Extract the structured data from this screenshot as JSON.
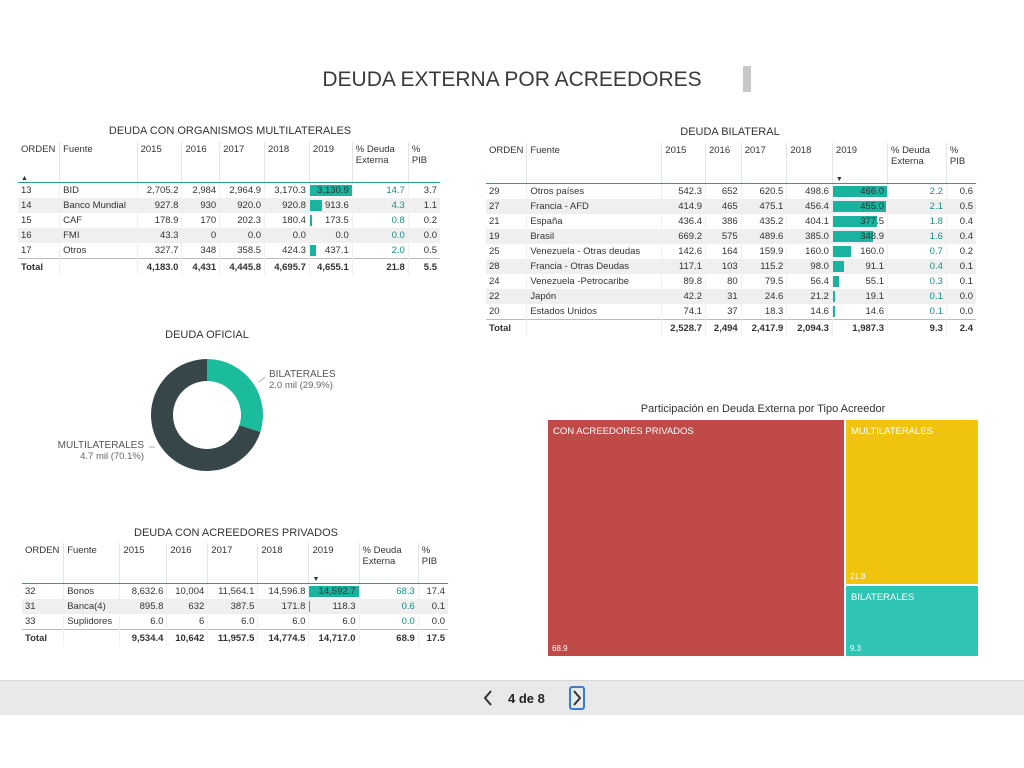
{
  "page": {
    "title": "DEUDA EXTERNA POR ACREEDORES",
    "pagination": {
      "text": "4 de 8",
      "current": 4,
      "total": 8
    }
  },
  "multilaterales": {
    "title": "DEUDA CON ORGANISMOS MULTILATERALES",
    "headers": [
      "ORDEN",
      "Fuente",
      "2015",
      "2016",
      "2017",
      "2018",
      "2019",
      "% Deuda Externa",
      "% PIB"
    ],
    "rows": [
      {
        "orden": "13",
        "fuente": "BID",
        "y2015": "2,705.2",
        "y2016": "2,984",
        "y2017": "2,964.9",
        "y2018": "3,170.3",
        "y2019": "3,130.9",
        "deuda": "14.7",
        "pib": "3.7",
        "bar": 1.0
      },
      {
        "orden": "14",
        "fuente": "Banco Mundial",
        "y2015": "927.8",
        "y2016": "930",
        "y2017": "920.0",
        "y2018": "920.8",
        "y2019": "913.6",
        "deuda": "4.3",
        "pib": "1.1",
        "bar": 0.29
      },
      {
        "orden": "15",
        "fuente": "CAF",
        "y2015": "178.9",
        "y2016": "170",
        "y2017": "202.3",
        "y2018": "180.4",
        "y2019": "173.5",
        "deuda": "0.8",
        "pib": "0.2",
        "bar": 0.06
      },
      {
        "orden": "16",
        "fuente": "FMI",
        "y2015": "43.3",
        "y2016": "0",
        "y2017": "0.0",
        "y2018": "0.0",
        "y2019": "0.0",
        "deuda": "0.0",
        "pib": "0.0",
        "bar": 0.0
      },
      {
        "orden": "17",
        "fuente": "Otros",
        "y2015": "327.7",
        "y2016": "348",
        "y2017": "358.5",
        "y2018": "424.3",
        "y2019": "437.1",
        "deuda": "2.0",
        "pib": "0.5",
        "bar": 0.14
      }
    ],
    "total": {
      "label": "Total",
      "y2015": "4,183.0",
      "y2016": "4,431",
      "y2017": "4,445.8",
      "y2018": "4,695.7",
      "y2019": "4,655.1",
      "deuda": "21.8",
      "pib": "5.5"
    }
  },
  "bilateral": {
    "title": "DEUDA BILATERAL",
    "headers": [
      "ORDEN",
      "Fuente",
      "2015",
      "2016",
      "2017",
      "2018",
      "2019",
      "% Deuda Externa",
      "% PIB"
    ],
    "rows": [
      {
        "orden": "29",
        "fuente": "Otros países",
        "y2015": "542.3",
        "y2016": "652",
        "y2017": "620.5",
        "y2018": "498.6",
        "y2019": "466.0",
        "deuda": "2.2",
        "pib": "0.6",
        "bar": 1.0
      },
      {
        "orden": "27",
        "fuente": "Francia - AFD",
        "y2015": "414.9",
        "y2016": "465",
        "y2017": "475.1",
        "y2018": "456.4",
        "y2019": "455.0",
        "deuda": "2.1",
        "pib": "0.5",
        "bar": 0.98
      },
      {
        "orden": "21",
        "fuente": "España",
        "y2015": "436.4",
        "y2016": "386",
        "y2017": "435.2",
        "y2018": "404.1",
        "y2019": "377.5",
        "deuda": "1.8",
        "pib": "0.4",
        "bar": 0.81
      },
      {
        "orden": "19",
        "fuente": "Brasil",
        "y2015": "669.2",
        "y2016": "575",
        "y2017": "489.6",
        "y2018": "385.0",
        "y2019": "348.9",
        "deuda": "1.6",
        "pib": "0.4",
        "bar": 0.75
      },
      {
        "orden": "25",
        "fuente": "Venezuela - Otras deudas",
        "y2015": "142.6",
        "y2016": "164",
        "y2017": "159.9",
        "y2018": "160.0",
        "y2019": "160.0",
        "deuda": "0.7",
        "pib": "0.2",
        "bar": 0.34
      },
      {
        "orden": "28",
        "fuente": "Francia - Otras Deudas",
        "y2015": "117.1",
        "y2016": "103",
        "y2017": "115.2",
        "y2018": "98.0",
        "y2019": "91.1",
        "deuda": "0.4",
        "pib": "0.1",
        "bar": 0.2
      },
      {
        "orden": "24",
        "fuente": "Venezuela -Petrocaribe",
        "y2015": "89.8",
        "y2016": "80",
        "y2017": "79.5",
        "y2018": "56.4",
        "y2019": "55.1",
        "deuda": "0.3",
        "pib": "0.1",
        "bar": 0.12
      },
      {
        "orden": "22",
        "fuente": "Japón",
        "y2015": "42.2",
        "y2016": "31",
        "y2017": "24.6",
        "y2018": "21.2",
        "y2019": "19.1",
        "deuda": "0.1",
        "pib": "0.0",
        "bar": 0.04
      },
      {
        "orden": "20",
        "fuente": "Estados Unidos",
        "y2015": "74.1",
        "y2016": "37",
        "y2017": "18.3",
        "y2018": "14.6",
        "y2019": "14.6",
        "deuda": "0.1",
        "pib": "0.0",
        "bar": 0.03
      }
    ],
    "total": {
      "label": "Total",
      "y2015": "2,528.7",
      "y2016": "2,494",
      "y2017": "2,417.9",
      "y2018": "2,094.3",
      "y2019": "1,987.3",
      "deuda": "9.3",
      "pib": "2.4"
    }
  },
  "privados": {
    "title": "DEUDA CON ACREEDORES PRIVADOS",
    "headers": [
      "ORDEN",
      "Fuente",
      "2015",
      "2016",
      "2017",
      "2018",
      "2019",
      "% Deuda Externa",
      "% PIB"
    ],
    "rows": [
      {
        "orden": "32",
        "fuente": "Bonos",
        "y2015": "8,632.6",
        "y2016": "10,004",
        "y2017": "11,564.1",
        "y2018": "14,596.8",
        "y2019": "14,592.7",
        "deuda": "68.3",
        "pib": "17.4",
        "bar": 1.0
      },
      {
        "orden": "31",
        "fuente": "Banca(4)",
        "y2015": "895.8",
        "y2016": "632",
        "y2017": "387.5",
        "y2018": "171.8",
        "y2019": "118.3",
        "deuda": "0.6",
        "pib": "0.1",
        "bar": 0.02
      },
      {
        "orden": "33",
        "fuente": "Suplidores",
        "y2015": "6.0",
        "y2016": "6",
        "y2017": "6.0",
        "y2018": "6.0",
        "y2019": "6.0",
        "deuda": "0.0",
        "pib": "0.0",
        "bar": 0.0
      }
    ],
    "total": {
      "label": "Total",
      "y2015": "9,534.4",
      "y2016": "10,642",
      "y2017": "11,957.5",
      "y2018": "14,774.5",
      "y2019": "14,717.0",
      "deuda": "68.9",
      "pib": "17.5"
    }
  },
  "donut": {
    "title": "DEUDA OFICIAL",
    "segments": [
      {
        "name": "BILATERALES",
        "value_text": "2.0 mil (29.9%)",
        "share": 0.299,
        "color": "#1bbc9b"
      },
      {
        "name": "MULTILATERALES",
        "value_text": "4.7 mil (70.1%)",
        "share": 0.701,
        "color": "#374649"
      }
    ]
  },
  "treemap": {
    "title": "Participación en Deuda Externa por Tipo Acreedor",
    "items": [
      {
        "name": "CON ACREEDORES PRIVADOS",
        "value": "68.9",
        "color": "#bf4a47"
      },
      {
        "name": "MULTILATERALES",
        "value": "21.8",
        "color": "#f0c30f"
      },
      {
        "name": "BILATERALES",
        "value": "9.3",
        "color": "#30c4b5"
      }
    ]
  },
  "sort_indicators": {
    "asc": "▲",
    "desc": "▼"
  }
}
